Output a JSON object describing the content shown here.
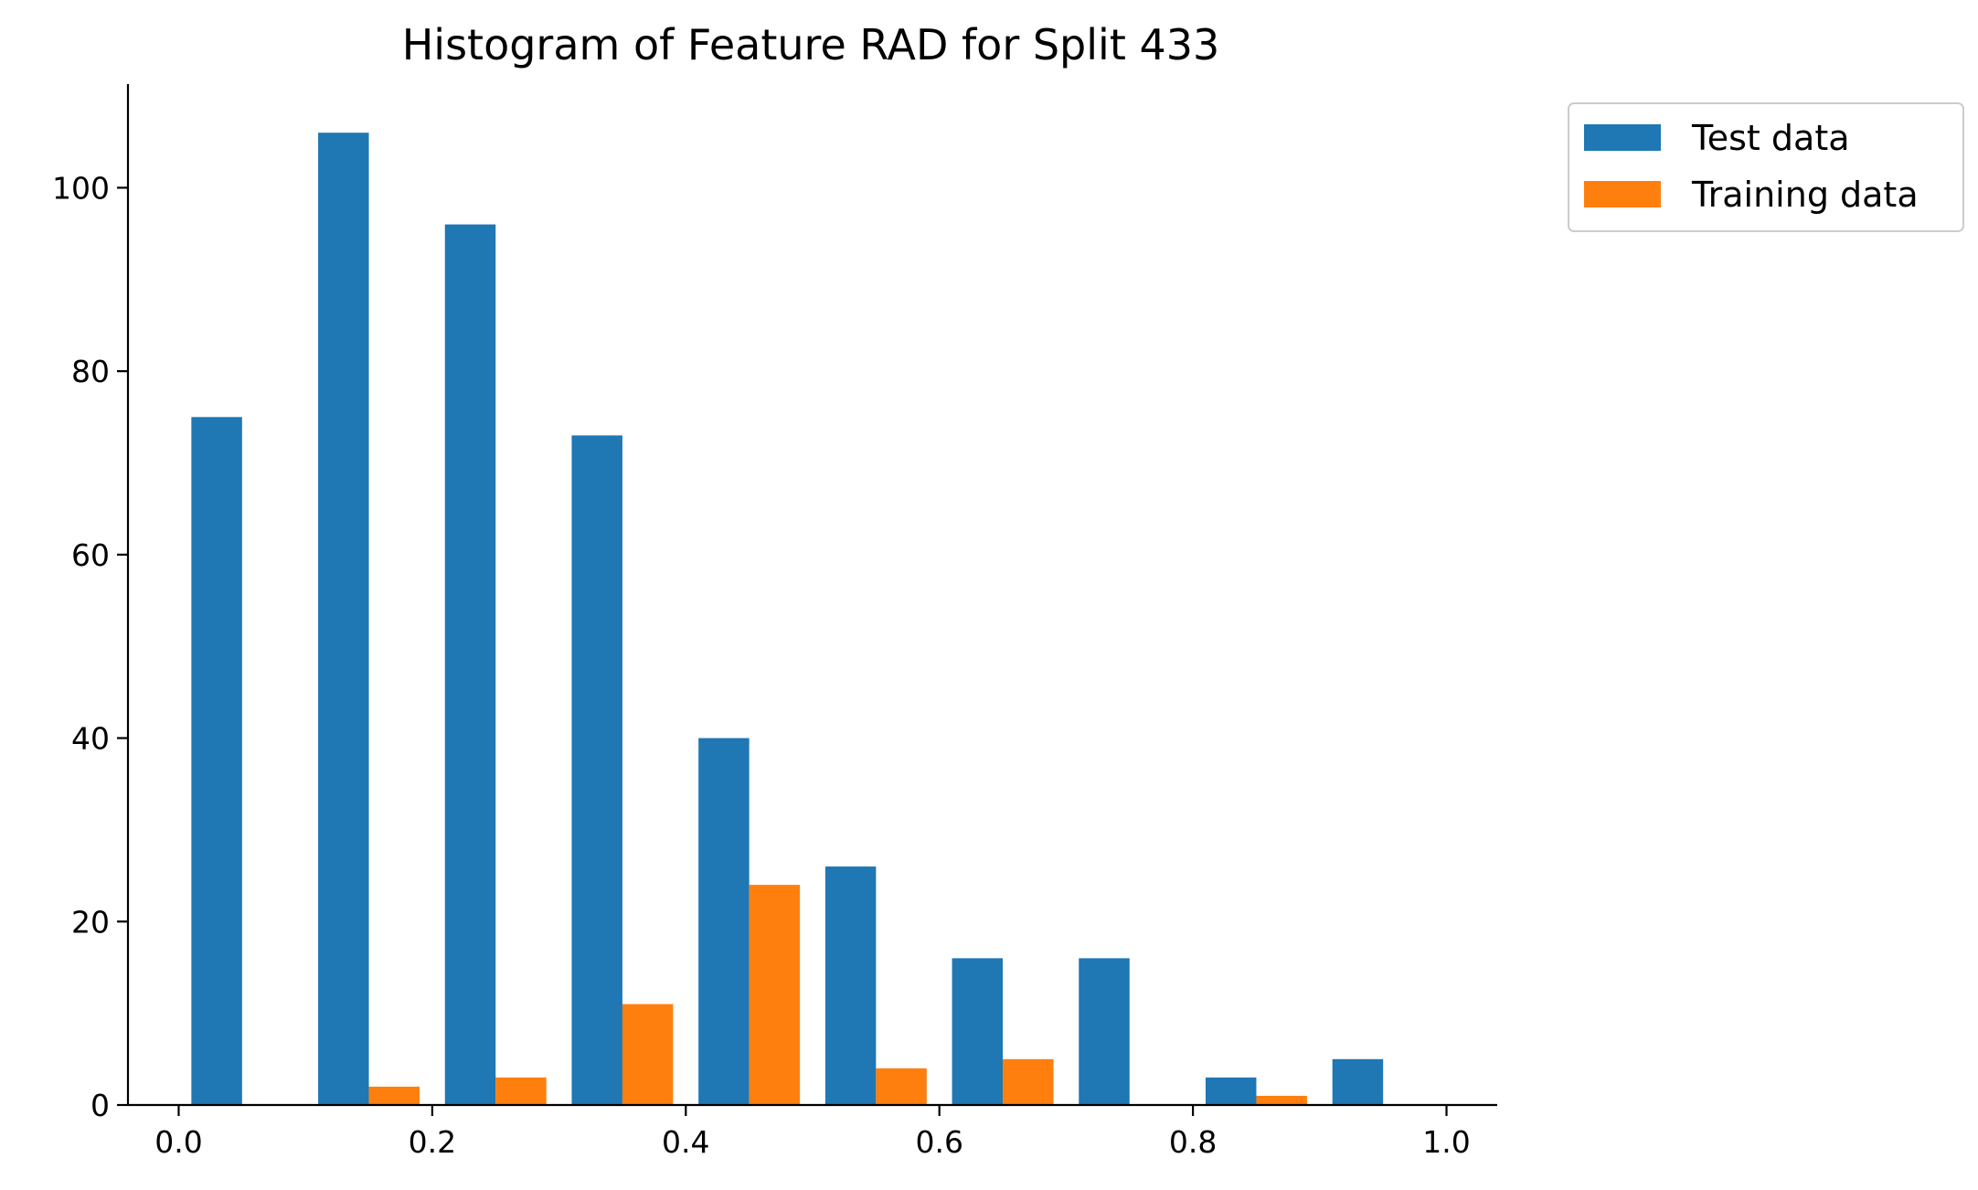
{
  "chart_data": {
    "type": "bar",
    "title": "Histogram of Feature RAD for Split 433",
    "xlabel": "",
    "ylabel": "",
    "xlim": [
      -0.04,
      1.04
    ],
    "ylim": [
      0,
      111.3
    ],
    "xticks": [
      0.0,
      0.2,
      0.4,
      0.6,
      0.8,
      1.0
    ],
    "xtick_labels": [
      "0.0",
      "0.2",
      "0.4",
      "0.6",
      "0.8",
      "1.0"
    ],
    "yticks": [
      0,
      20,
      40,
      60,
      80,
      100
    ],
    "ytick_labels": [
      "0",
      "20",
      "40",
      "60",
      "80",
      "100"
    ],
    "bin_edges": [
      0.0,
      0.1,
      0.2,
      0.3,
      0.4,
      0.5,
      0.6,
      0.7,
      0.8,
      0.9,
      1.0
    ],
    "series": [
      {
        "name": "Test data",
        "color": "#1f77b4",
        "values": [
          75,
          106,
          96,
          73,
          40,
          26,
          16,
          16,
          3,
          5
        ]
      },
      {
        "name": "Training data",
        "color": "#ff7f0e",
        "values": [
          0,
          2,
          3,
          11,
          24,
          4,
          5,
          0,
          1,
          0
        ]
      }
    ],
    "legend_position": "outside top-right",
    "grid": false,
    "spines": "left and bottom only"
  }
}
